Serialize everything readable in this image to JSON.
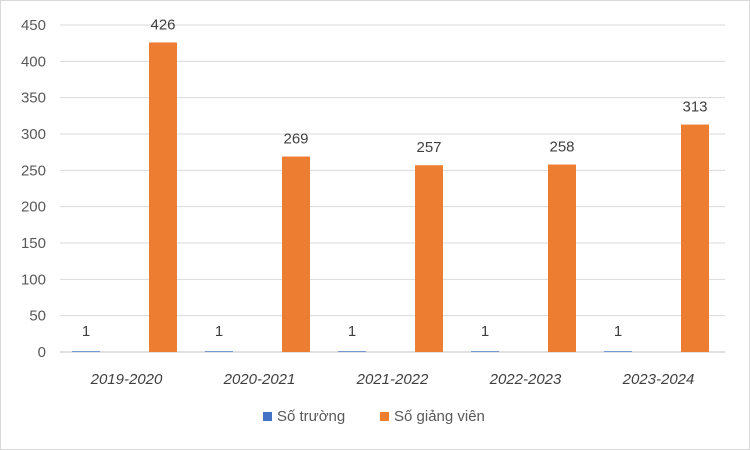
{
  "chart_data": {
    "type": "bar",
    "title": "",
    "xlabel": "",
    "ylabel": "",
    "categories": [
      "2019-2020",
      "2020-2021",
      "2021-2022",
      "2022-2023",
      "2023-2024"
    ],
    "series": [
      {
        "name": "Số trường",
        "color": "#4472C4",
        "values": [
          1,
          1,
          1,
          1,
          1
        ]
      },
      {
        "name": "Số giảng viên",
        "color": "#ED7D31",
        "values": [
          426,
          269,
          257,
          258,
          313
        ]
      }
    ],
    "ylim": [
      0,
      450
    ],
    "yticks": [
      0,
      50,
      100,
      150,
      200,
      250,
      300,
      350,
      400,
      450
    ],
    "grid": true,
    "legend_position": "bottom"
  }
}
